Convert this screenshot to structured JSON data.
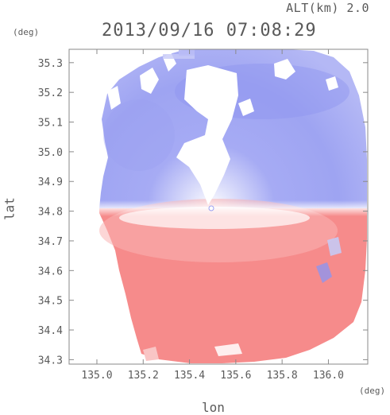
{
  "header": {
    "alt_label": "ALT(km) 2.0",
    "timestamp": "2013/09/16 07:08:29"
  },
  "axes": {
    "x_label": "lon",
    "y_label": "lat",
    "x_unit": "(deg)",
    "y_unit": "(deg)",
    "x_range": [
      134.88,
      136.17
    ],
    "y_range": [
      34.285,
      35.345
    ],
    "x_ticks": [
      "135.0",
      "135.2",
      "135.4",
      "135.6",
      "135.8",
      "136.0"
    ],
    "x_tick_values": [
      135.0,
      135.2,
      135.4,
      135.6,
      135.8,
      136.0
    ],
    "y_ticks": [
      "34.3",
      "34.4",
      "34.5",
      "34.6",
      "34.7",
      "34.8",
      "34.9",
      "35.0",
      "35.1",
      "35.2",
      "35.3"
    ],
    "y_tick_values": [
      34.3,
      34.4,
      34.5,
      34.6,
      34.7,
      34.8,
      34.9,
      35.0,
      35.1,
      35.2,
      35.3
    ]
  },
  "radar": {
    "center_lon": 135.525,
    "center_lat": 34.815,
    "colors": {
      "toward": "#6b74f0",
      "away": "#f47878",
      "neutral": "#ffffff"
    }
  }
}
